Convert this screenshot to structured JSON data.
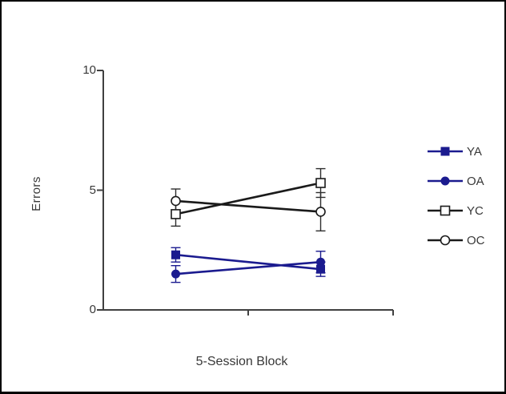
{
  "figure": {
    "background": "#ffffff",
    "border_color": "#000000"
  },
  "colors": {
    "young_series": "#1b1b8f",
    "old_series_black": "#1a1a1a",
    "axis": "#404040",
    "text": "#383838",
    "error_bar_black": "#2e2e2e"
  },
  "chart_data": {
    "type": "line",
    "title": "",
    "xlabel": "5-Session Block",
    "ylabel": "Errors",
    "ylim": [
      0,
      10
    ],
    "yticks": [
      0,
      5,
      10
    ],
    "ytick_labels": [
      "0",
      "5",
      "10"
    ],
    "categories": [
      "",
      ""
    ],
    "n_x_points": 2,
    "grid": false,
    "legend_position": "right",
    "error_bars": true,
    "series": [
      {
        "name": "YA",
        "color": "#1b1b8f",
        "marker": "square-filled",
        "values": [
          2.3,
          1.7
        ],
        "errors": [
          0.3,
          0.3
        ]
      },
      {
        "name": "OA",
        "color": "#1b1b8f",
        "marker": "circle-filled",
        "values": [
          1.5,
          2.0
        ],
        "errors": [
          0.35,
          0.45
        ]
      },
      {
        "name": "YC",
        "color": "#1a1a1a",
        "marker": "square-open",
        "values": [
          4.0,
          5.3
        ],
        "errors": [
          0.5,
          0.6
        ]
      },
      {
        "name": "OC",
        "color": "#1a1a1a",
        "marker": "circle-open",
        "values": [
          4.55,
          4.1
        ],
        "errors": [
          0.5,
          0.8
        ]
      }
    ]
  }
}
